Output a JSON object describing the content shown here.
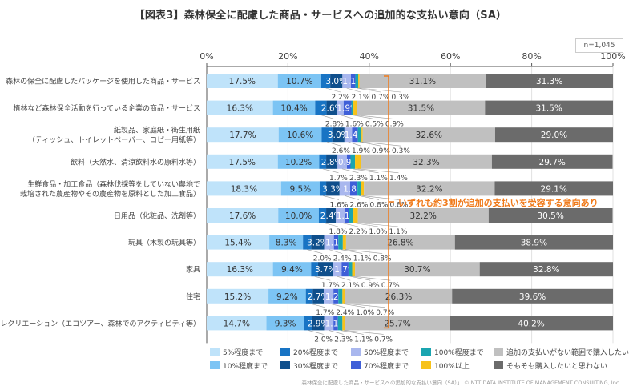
{
  "header": {
    "title": "【図表3】森林保全に配慮した商品・サービスへの追加的な支払い意向（SA）",
    "sample_size": "n=1,045"
  },
  "annotation": "いずれも約3割が追加の支払いを受容する意向あり",
  "footer": "「森林保全に配慮した商品・サービスへの追加的な支払い意向（SA）」 © NTT DATA INSTITUTE OF MANAGEMENT CONSULTING, Inc.",
  "chart_data": {
    "type": "bar",
    "orientation": "horizontal",
    "stacked": true,
    "title": "【図表3】森林保全に配慮した商品・サービスへの追加的な支払い意向（SA）",
    "xlabel": "",
    "ylabel": "",
    "xlim": [
      0,
      100
    ],
    "x_ticks": [
      "0%",
      "20%",
      "40%",
      "60%",
      "80%",
      "100%"
    ],
    "grid": true,
    "legend_position": "bottom",
    "categories": [
      "森林の保全に配慮したパッケージを使用した商品・サービス",
      "植林など森林保全活動を行っている企業の商品・サービス",
      "紙製品、家庭紙・衛生用紙\n（ティッシュ、トイレットペーパー、コピー用紙等）",
      "飲料（天然水、清涼飲料水の原料水等）",
      "生鮮食品・加工食品（森林伐採等をしていない農地で\n栽培された農産物やその農産物を原料とした加工食品）",
      "日用品（化粧品、洗剤等）",
      "玩具（木製の玩具等）",
      "家具",
      "住宅",
      "レクリエーション（エコツアー、森林でのアクティビティ等）"
    ],
    "series": [
      {
        "name": "5%程度まで",
        "color": "#bfe3fa",
        "values": [
          17.5,
          16.3,
          17.7,
          17.5,
          18.3,
          17.6,
          15.4,
          16.3,
          15.2,
          14.7
        ]
      },
      {
        "name": "10%程度まで",
        "color": "#7cc4f4",
        "values": [
          10.7,
          10.4,
          10.6,
          10.2,
          9.5,
          10.0,
          8.3,
          9.4,
          9.2,
          9.3
        ]
      },
      {
        "name": "20%程度まで",
        "color": "#1874c4",
        "values": [
          2.2,
          2.8,
          2.6,
          1.7,
          1.6,
          1.8,
          2.0,
          1.7,
          1.7,
          2.0
        ]
      },
      {
        "name": "30%程度まで",
        "color": "#0f4f8c",
        "values": [
          3.0,
          2.6,
          3.0,
          2.8,
          3.3,
          2.4,
          3.2,
          3.7,
          2.7,
          2.9
        ]
      },
      {
        "name": "50%程度まで",
        "color": "#a9b7ee",
        "values": [
          2.1,
          1.6,
          1.9,
          2.3,
          2.6,
          2.2,
          2.4,
          2.1,
          2.4,
          2.3
        ]
      },
      {
        "name": "70%程度まで",
        "color": "#3f5fd8",
        "values": [
          1.1,
          1.9,
          1.4,
          0.9,
          1.8,
          1.1,
          1.1,
          1.7,
          1.2,
          1.1
        ]
      },
      {
        "name": "100%程度まで",
        "color": "#1aa5b0",
        "values": [
          0.7,
          0.5,
          0.9,
          1.1,
          0.8,
          1.0,
          1.1,
          0.9,
          1.0,
          1.1
        ]
      },
      {
        "name": "100%以上",
        "color": "#f7c21a",
        "values": [
          0.3,
          0.9,
          0.3,
          1.4,
          0.8,
          1.1,
          0.8,
          0.7,
          0.7,
          0.7
        ]
      },
      {
        "name": "追加の支払いがない範囲で購入したい",
        "color": "#c0c0c0",
        "values": [
          31.1,
          31.5,
          32.6,
          32.3,
          32.2,
          32.2,
          26.8,
          30.7,
          26.3,
          25.7
        ]
      },
      {
        "name": "そもそも購入したいと思わない",
        "color": "#6b6b6b",
        "values": [
          31.3,
          31.5,
          29.0,
          29.7,
          29.1,
          30.5,
          38.9,
          32.8,
          39.6,
          40.2
        ]
      }
    ],
    "inside_label_series": [
      0,
      1,
      3,
      5,
      8,
      9
    ],
    "below_label_series": [
      2,
      4,
      6,
      7
    ],
    "legend_order": [
      0,
      2,
      4,
      6,
      8,
      1,
      3,
      5,
      7,
      9
    ]
  }
}
